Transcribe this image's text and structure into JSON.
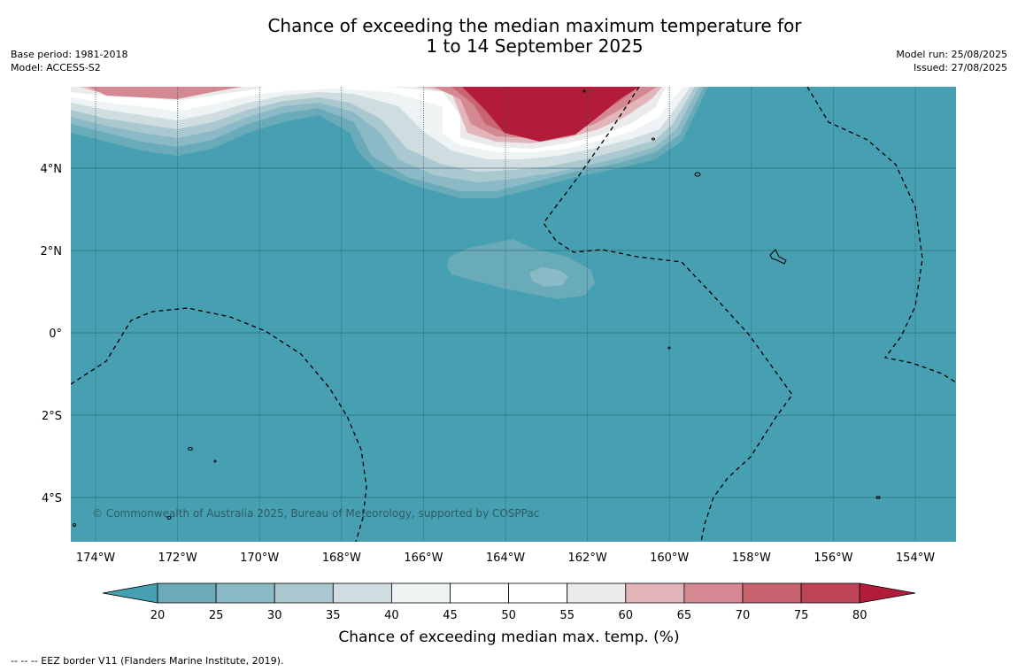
{
  "title": {
    "line1": "Chance of exceeding the median maximum temperature for",
    "line2": "1 to 14 September 2025"
  },
  "meta": {
    "base_period": "Base period: 1981-2018",
    "model": "Model: ACCESS-S2",
    "model_run": "Model run: 25/08/2025",
    "issued": "Issued: 27/08/2025"
  },
  "map": {
    "copyright": "© Commonwealth of Australia 2025, Bureau of Meteorology, supported by COSPPac",
    "lon_labels": [
      "174°W",
      "172°W",
      "170°W",
      "168°W",
      "166°W",
      "164°W",
      "162°W",
      "160°W",
      "158°W",
      "156°W",
      "154°W"
    ],
    "lat_labels": [
      "4°N",
      "2°N",
      "0°",
      "2°S",
      "4°S"
    ],
    "background_color": "#47a0b1"
  },
  "colorbar": {
    "ticks": [
      "20",
      "25",
      "30",
      "35",
      "40",
      "45",
      "50",
      "55",
      "60",
      "65",
      "70",
      "75",
      "80"
    ],
    "colors": [
      "#47a0b1",
      "#6baab9",
      "#8ab9c5",
      "#aac8cf",
      "#cfdde1",
      "#eef3f4",
      "#ffffff",
      "#ffffff",
      "#ebebeb",
      "#e2b5bb",
      "#d48891",
      "#c86470",
      "#be4455",
      "#b31b3a"
    ],
    "label": "Chance of exceeding median max. temp. (%)"
  },
  "footnote": "--  --  -- EEZ border V11 (Flanders Marine Institute, 2019)."
}
